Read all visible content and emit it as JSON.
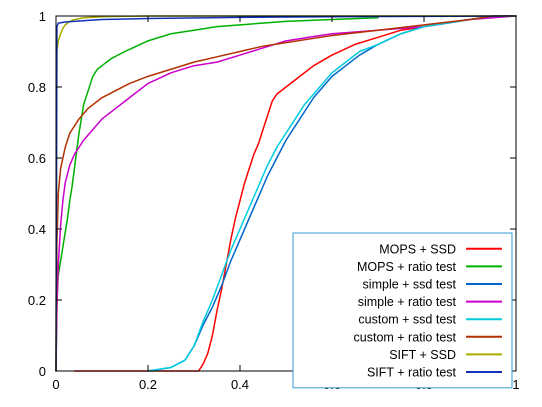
{
  "chart_data": {
    "type": "line",
    "title": "",
    "xlabel": "",
    "ylabel": "",
    "xlim": [
      0,
      1
    ],
    "ylim": [
      0,
      1
    ],
    "xticks": [
      {
        "value": 0,
        "label": "0"
      },
      {
        "value": 0.2,
        "label": "0.2"
      },
      {
        "value": 0.4,
        "label": "0.4"
      },
      {
        "value": 0.6,
        "label": "0.6"
      },
      {
        "value": 0.8,
        "label": "0.8"
      },
      {
        "value": 1,
        "label": "1"
      }
    ],
    "yticks": [
      {
        "value": 0,
        "label": "0"
      },
      {
        "value": 0.2,
        "label": "0.2"
      },
      {
        "value": 0.4,
        "label": "0.4"
      },
      {
        "value": 0.6,
        "label": "0.6"
      },
      {
        "value": 0.8,
        "label": "0.8"
      },
      {
        "value": 1,
        "label": "1"
      }
    ],
    "grid": false,
    "legend_position": "bottom-right",
    "series": [
      {
        "name": "MOPS + SSD",
        "color": "#ff0000",
        "points": [
          [
            0.04,
            0.0
          ],
          [
            0.31,
            0.0
          ],
          [
            0.32,
            0.02
          ],
          [
            0.33,
            0.05
          ],
          [
            0.34,
            0.1
          ],
          [
            0.35,
            0.17
          ],
          [
            0.36,
            0.23
          ],
          [
            0.37,
            0.3
          ],
          [
            0.38,
            0.37
          ],
          [
            0.39,
            0.43
          ],
          [
            0.4,
            0.48
          ],
          [
            0.41,
            0.53
          ],
          [
            0.42,
            0.57
          ],
          [
            0.43,
            0.61
          ],
          [
            0.44,
            0.64
          ],
          [
            0.45,
            0.68
          ],
          [
            0.46,
            0.72
          ],
          [
            0.47,
            0.76
          ],
          [
            0.48,
            0.78
          ],
          [
            0.5,
            0.8
          ],
          [
            0.53,
            0.83
          ],
          [
            0.56,
            0.86
          ],
          [
            0.6,
            0.89
          ],
          [
            0.65,
            0.92
          ],
          [
            0.7,
            0.94
          ],
          [
            0.75,
            0.96
          ],
          [
            0.8,
            0.97
          ],
          [
            0.85,
            0.98
          ],
          [
            0.9,
            0.99
          ],
          [
            0.95,
            1.0
          ],
          [
            1.0,
            1.0
          ]
        ]
      },
      {
        "name": "MOPS + ratio test",
        "color": "#00b000",
        "points": [
          [
            0.0,
            0.0
          ],
          [
            0.002,
            0.2
          ],
          [
            0.005,
            0.27
          ],
          [
            0.01,
            0.31
          ],
          [
            0.015,
            0.35
          ],
          [
            0.02,
            0.39
          ],
          [
            0.025,
            0.43
          ],
          [
            0.03,
            0.48
          ],
          [
            0.035,
            0.52
          ],
          [
            0.04,
            0.57
          ],
          [
            0.045,
            0.62
          ],
          [
            0.05,
            0.67
          ],
          [
            0.055,
            0.71
          ],
          [
            0.06,
            0.75
          ],
          [
            0.07,
            0.79
          ],
          [
            0.08,
            0.83
          ],
          [
            0.09,
            0.85
          ],
          [
            0.1,
            0.86
          ],
          [
            0.12,
            0.88
          ],
          [
            0.15,
            0.9
          ],
          [
            0.2,
            0.93
          ],
          [
            0.25,
            0.95
          ],
          [
            0.3,
            0.96
          ],
          [
            0.35,
            0.97
          ],
          [
            0.4,
            0.975
          ],
          [
            0.5,
            0.985
          ],
          [
            0.6,
            0.99
          ],
          [
            0.7,
            0.995
          ]
        ]
      },
      {
        "name": "simple + ssd test",
        "color": "#0066cc",
        "points": [
          [
            0.2,
            0.0
          ],
          [
            0.25,
            0.01
          ],
          [
            0.28,
            0.03
          ],
          [
            0.3,
            0.07
          ],
          [
            0.32,
            0.13
          ],
          [
            0.34,
            0.18
          ],
          [
            0.36,
            0.24
          ],
          [
            0.38,
            0.31
          ],
          [
            0.4,
            0.37
          ],
          [
            0.42,
            0.43
          ],
          [
            0.44,
            0.49
          ],
          [
            0.46,
            0.55
          ],
          [
            0.48,
            0.6
          ],
          [
            0.5,
            0.65
          ],
          [
            0.52,
            0.69
          ],
          [
            0.54,
            0.73
          ],
          [
            0.56,
            0.77
          ],
          [
            0.58,
            0.8
          ],
          [
            0.6,
            0.83
          ],
          [
            0.63,
            0.86
          ],
          [
            0.66,
            0.89
          ],
          [
            0.7,
            0.92
          ],
          [
            0.75,
            0.95
          ],
          [
            0.8,
            0.97
          ],
          [
            0.85,
            0.98
          ],
          [
            0.9,
            0.99
          ],
          [
            0.95,
            1.0
          ],
          [
            1.0,
            1.0
          ]
        ]
      },
      {
        "name": "simple + ratio test",
        "color": "#cc00cc",
        "points": [
          [
            0.0,
            0.0
          ],
          [
            0.002,
            0.18
          ],
          [
            0.005,
            0.3
          ],
          [
            0.01,
            0.41
          ],
          [
            0.015,
            0.48
          ],
          [
            0.02,
            0.53
          ],
          [
            0.03,
            0.58
          ],
          [
            0.04,
            0.61
          ],
          [
            0.05,
            0.63
          ],
          [
            0.06,
            0.65
          ],
          [
            0.08,
            0.68
          ],
          [
            0.1,
            0.71
          ],
          [
            0.13,
            0.74
          ],
          [
            0.16,
            0.77
          ],
          [
            0.2,
            0.81
          ],
          [
            0.25,
            0.84
          ],
          [
            0.3,
            0.86
          ],
          [
            0.35,
            0.87
          ],
          [
            0.4,
            0.89
          ],
          [
            0.45,
            0.91
          ],
          [
            0.5,
            0.93
          ],
          [
            0.55,
            0.94
          ],
          [
            0.6,
            0.95
          ],
          [
            0.7,
            0.96
          ],
          [
            0.8,
            0.97
          ],
          [
            0.9,
            0.99
          ],
          [
            1.0,
            1.0
          ]
        ]
      },
      {
        "name": "custom + ssd test",
        "color": "#00ccdd",
        "points": [
          [
            0.2,
            0.0
          ],
          [
            0.25,
            0.01
          ],
          [
            0.28,
            0.03
          ],
          [
            0.3,
            0.07
          ],
          [
            0.32,
            0.14
          ],
          [
            0.34,
            0.2
          ],
          [
            0.36,
            0.27
          ],
          [
            0.38,
            0.34
          ],
          [
            0.4,
            0.4
          ],
          [
            0.42,
            0.46
          ],
          [
            0.44,
            0.52
          ],
          [
            0.46,
            0.58
          ],
          [
            0.48,
            0.63
          ],
          [
            0.5,
            0.67
          ],
          [
            0.52,
            0.71
          ],
          [
            0.54,
            0.75
          ],
          [
            0.56,
            0.78
          ],
          [
            0.58,
            0.81
          ],
          [
            0.6,
            0.84
          ],
          [
            0.63,
            0.87
          ],
          [
            0.66,
            0.9
          ],
          [
            0.7,
            0.92
          ],
          [
            0.75,
            0.95
          ],
          [
            0.8,
            0.97
          ],
          [
            0.85,
            0.98
          ],
          [
            0.9,
            0.99
          ],
          [
            0.95,
            1.0
          ],
          [
            1.0,
            1.0
          ]
        ]
      },
      {
        "name": "custom + ratio test",
        "color": "#b33000",
        "points": [
          [
            0.0,
            0.0
          ],
          [
            0.002,
            0.36
          ],
          [
            0.005,
            0.5
          ],
          [
            0.01,
            0.57
          ],
          [
            0.02,
            0.63
          ],
          [
            0.03,
            0.67
          ],
          [
            0.05,
            0.71
          ],
          [
            0.07,
            0.74
          ],
          [
            0.1,
            0.77
          ],
          [
            0.13,
            0.79
          ],
          [
            0.16,
            0.81
          ],
          [
            0.2,
            0.83
          ],
          [
            0.25,
            0.85
          ],
          [
            0.3,
            0.87
          ],
          [
            0.35,
            0.885
          ],
          [
            0.4,
            0.9
          ],
          [
            0.45,
            0.915
          ],
          [
            0.5,
            0.925
          ],
          [
            0.55,
            0.935
          ],
          [
            0.6,
            0.945
          ],
          [
            0.7,
            0.96
          ],
          [
            0.8,
            0.975
          ],
          [
            0.9,
            0.99
          ],
          [
            0.95,
            1.0
          ],
          [
            1.0,
            1.0
          ]
        ]
      },
      {
        "name": "SIFT + SSD",
        "color": "#aaaa00",
        "points": [
          [
            0.0,
            0.0
          ],
          [
            0.002,
            0.9
          ],
          [
            0.005,
            0.93
          ],
          [
            0.01,
            0.95
          ],
          [
            0.015,
            0.965
          ],
          [
            0.02,
            0.975
          ],
          [
            0.03,
            0.985
          ],
          [
            0.04,
            0.99
          ],
          [
            0.06,
            0.995
          ],
          [
            0.1,
            0.998
          ],
          [
            0.2,
            1.0
          ],
          [
            1.0,
            1.0
          ]
        ]
      },
      {
        "name": "SIFT + ratio test",
        "color": "#1133bb",
        "points": [
          [
            0.0,
            0.0
          ],
          [
            0.002,
            0.97
          ],
          [
            0.005,
            0.98
          ],
          [
            0.02,
            0.983
          ],
          [
            0.05,
            0.986
          ],
          [
            0.1,
            0.99
          ],
          [
            0.2,
            0.993
          ],
          [
            0.4,
            0.996
          ],
          [
            0.6,
            0.998
          ],
          [
            0.8,
            0.999
          ],
          [
            1.0,
            1.0
          ]
        ]
      }
    ]
  }
}
